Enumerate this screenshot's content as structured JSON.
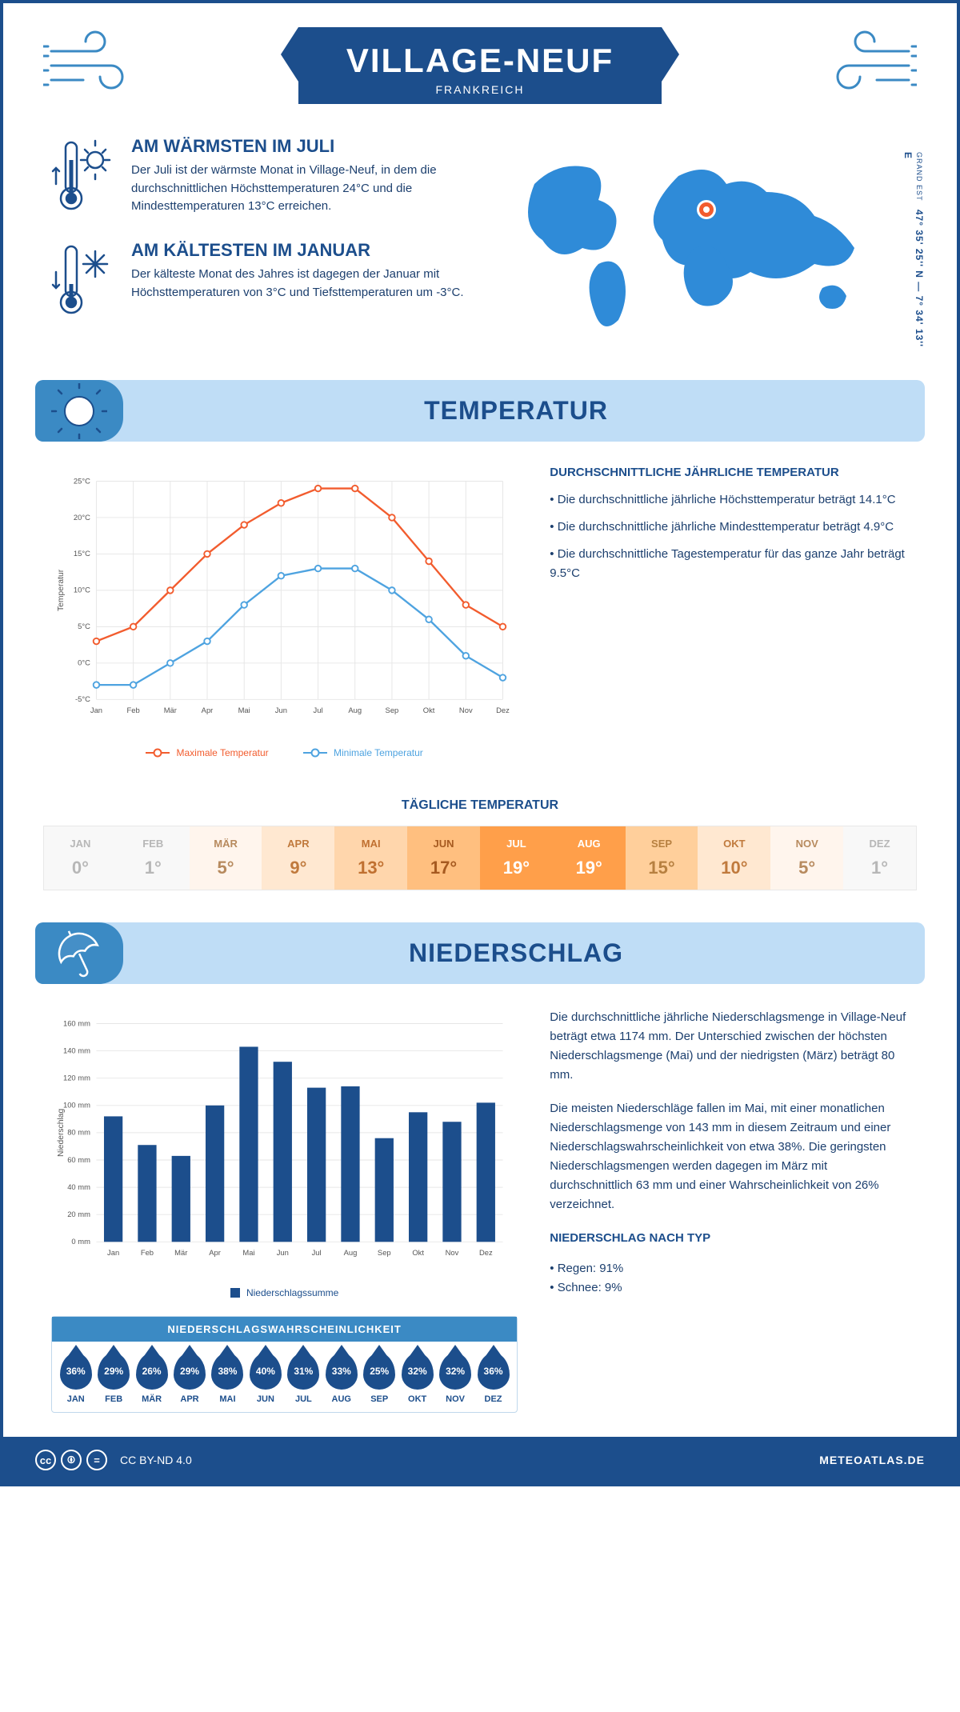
{
  "header": {
    "title": "VILLAGE-NEUF",
    "subtitle": "FRANKREICH"
  },
  "coords": {
    "region": "GRAND EST",
    "text": "47° 35' 25'' N — 7° 34' 13'' E"
  },
  "facts": {
    "warm": {
      "title": "AM WÄRMSTEN IM JULI",
      "text": "Der Juli ist der wärmste Monat in Village-Neuf, in dem die durchschnittlichen Höchsttemperaturen 24°C und die Mindesttemperaturen 13°C erreichen."
    },
    "cold": {
      "title": "AM KÄLTESTEN IM JANUAR",
      "text": "Der kälteste Monat des Jahres ist dagegen der Januar mit Höchsttemperaturen von 3°C und Tiefsttemperaturen um -3°C."
    }
  },
  "sections": {
    "temperature": "TEMPERATUR",
    "precipitation": "NIEDERSCHLAG"
  },
  "temp_chart": {
    "type": "line",
    "months": [
      "Jan",
      "Feb",
      "Mär",
      "Apr",
      "Mai",
      "Jun",
      "Jul",
      "Aug",
      "Sep",
      "Okt",
      "Nov",
      "Dez"
    ],
    "max": [
      3,
      5,
      10,
      15,
      19,
      22,
      24,
      24,
      20,
      14,
      8,
      5
    ],
    "min": [
      -3,
      -3,
      0,
      3,
      8,
      12,
      13,
      13,
      10,
      6,
      1,
      -2
    ],
    "ylabel": "Temperatur",
    "ylim": [
      -5,
      25
    ],
    "ytick": [
      "-5°C",
      "0°C",
      "5°C",
      "10°C",
      "15°C",
      "20°C",
      "25°C"
    ],
    "colors": {
      "max": "#f25c2e",
      "min": "#4ea3e0",
      "grid": "#e6e6e6"
    },
    "legend_max": "Maximale Temperatur",
    "legend_min": "Minimale Temperatur"
  },
  "temp_info": {
    "heading": "DURCHSCHNITTLICHE JÄHRLICHE TEMPERATUR",
    "b1": "• Die durchschnittliche jährliche Höchsttemperatur beträgt 14.1°C",
    "b2": "• Die durchschnittliche jährliche Mindesttemperatur beträgt 4.9°C",
    "b3": "• Die durchschnittliche Tagestemperatur für das ganze Jahr beträgt 9.5°C"
  },
  "daily_temp": {
    "title": "TÄGLICHE TEMPERATUR",
    "months": [
      "JAN",
      "FEB",
      "MÄR",
      "APR",
      "MAI",
      "JUN",
      "JUL",
      "AUG",
      "SEP",
      "OKT",
      "NOV",
      "DEZ"
    ],
    "values": [
      "0°",
      "1°",
      "5°",
      "9°",
      "13°",
      "17°",
      "19°",
      "19°",
      "15°",
      "10°",
      "5°",
      "1°"
    ],
    "bg": [
      "#f8f8f8",
      "#f8f8f8",
      "#fff5ed",
      "#ffe8d1",
      "#ffd6ac",
      "#ffbf7f",
      "#ff9f4a",
      "#ff9f4a",
      "#ffcf9b",
      "#ffe8d1",
      "#fff5ed",
      "#f8f8f8"
    ],
    "fg": [
      "#b7b7b7",
      "#b7b7b7",
      "#b78a5e",
      "#c07a3d",
      "#c07030",
      "#a65a20",
      "#fff",
      "#fff",
      "#b78040",
      "#c07a3d",
      "#b78a5e",
      "#b7b7b7"
    ]
  },
  "precip_chart": {
    "type": "bar",
    "months": [
      "Jan",
      "Feb",
      "Mär",
      "Apr",
      "Mai",
      "Jun",
      "Jul",
      "Aug",
      "Sep",
      "Okt",
      "Nov",
      "Dez"
    ],
    "values": [
      92,
      71,
      63,
      100,
      143,
      132,
      113,
      114,
      76,
      95,
      88,
      102
    ],
    "ylabel": "Niederschlag",
    "ylim": [
      0,
      160
    ],
    "ytick": [
      "0 mm",
      "20 mm",
      "40 mm",
      "60 mm",
      "80 mm",
      "100 mm",
      "120 mm",
      "140 mm",
      "160 mm"
    ],
    "bar_color": "#1c4e8c",
    "grid": "#e6e6e6",
    "legend": "Niederschlagssumme"
  },
  "precip_text": {
    "p1": "Die durchschnittliche jährliche Niederschlagsmenge in Village-Neuf beträgt etwa 1174 mm. Der Unterschied zwischen der höchsten Niederschlagsmenge (Mai) und der niedrigsten (März) beträgt 80 mm.",
    "p2": "Die meisten Niederschläge fallen im Mai, mit einer monatlichen Niederschlagsmenge von 143 mm in diesem Zeitraum und einer Niederschlagswahrscheinlichkeit von etwa 38%. Die geringsten Niederschlagsmengen werden dagegen im März mit durchschnittlich 63 mm und einer Wahrscheinlichkeit von 26% verzeichnet.",
    "type_heading": "NIEDERSCHLAG NACH TYP",
    "type_rain": "• Regen: 91%",
    "type_snow": "• Schnee: 9%"
  },
  "probability": {
    "title": "NIEDERSCHLAGSWAHRSCHEINLICHKEIT",
    "months": [
      "JAN",
      "FEB",
      "MÄR",
      "APR",
      "MAI",
      "JUN",
      "JUL",
      "AUG",
      "SEP",
      "OKT",
      "NOV",
      "DEZ"
    ],
    "values": [
      "36%",
      "29%",
      "26%",
      "29%",
      "38%",
      "40%",
      "31%",
      "33%",
      "25%",
      "32%",
      "32%",
      "36%"
    ]
  },
  "footer": {
    "license": "CC BY-ND 4.0",
    "site": "METEOATLAS.DE"
  }
}
